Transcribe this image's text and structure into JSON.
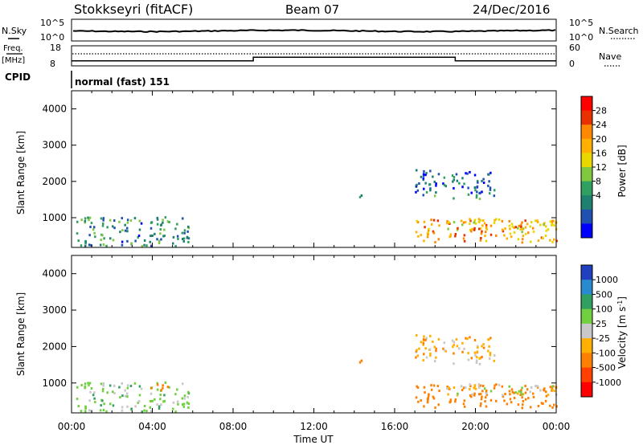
{
  "header": {
    "station": "Stokkseyri (fitACF)",
    "beam": "Beam 07",
    "date": "24/Dec/2016"
  },
  "noise_panel": {
    "left_label": "N.Sky",
    "right_label": "N.Search",
    "ticks_left": [
      "10^5",
      "10^0"
    ],
    "ticks_right": [
      "10^5",
      "10^0"
    ]
  },
  "freq_panel": {
    "left_label_top": "Freq.",
    "left_label_bottom": "[MHz]",
    "right_label": "Nave",
    "ticks_left": [
      "18",
      "8"
    ],
    "ticks_right": [
      "60",
      "0"
    ]
  },
  "cpid": {
    "label": "CPID",
    "text": "normal (fast) 151"
  },
  "power_panel": {
    "ylabel": "Slant Range [km]",
    "yticks": [
      "4000",
      "3000",
      "2000",
      "1000"
    ],
    "colorbar": {
      "label": "Power [dB]",
      "ticks": [
        "28",
        "24",
        "20",
        "16",
        "12",
        "8",
        "4"
      ],
      "colors": [
        "#ff0000",
        "#e83000",
        "#ff8800",
        "#ffb000",
        "#e8d800",
        "#80c840",
        "#30a060",
        "#208070",
        "#2050b0",
        "#0000ff"
      ]
    }
  },
  "velocity_panel": {
    "ylabel": "Slant Range [km]",
    "yticks": [
      "4000",
      "3000",
      "2000",
      "1000"
    ],
    "colorbar": {
      "label": "Velocity",
      "unit": "[m s",
      "unit_sup": "-1",
      "unit_end": "]",
      "ticks": [
        "1000",
        "500",
        "100",
        "25",
        "-25",
        "-100",
        "-500",
        "-1000"
      ],
      "colors": [
        "#2040c0",
        "#2a8ad0",
        "#30a060",
        "#70d040",
        "#c8c8c8",
        "#ffb000",
        "#ff8000",
        "#ff4000",
        "#ff0000"
      ]
    }
  },
  "xaxis": {
    "label": "Time UT",
    "ticks": [
      "00:00",
      "04:00",
      "08:00",
      "12:00",
      "16:00",
      "20:00",
      "00:00"
    ]
  },
  "chart_data": {
    "type": "heatmap",
    "title": "Stokkseyri (fitACF) Beam 07 24/Dec/2016",
    "x_range_hours": [
      0,
      24
    ],
    "y_range_km": [
      180,
      4500
    ],
    "xlabel": "Time UT",
    "ylabel": "Slant Range [km]",
    "freq_mhz_steps": [
      {
        "from_h": 0,
        "to_h": 9,
        "freq": 10.5
      },
      {
        "from_h": 9,
        "to_h": 19,
        "freq": 12.3
      },
      {
        "from_h": 19,
        "to_h": 24,
        "freq": 10.5
      }
    ],
    "echo_regions": [
      {
        "t0": 0.2,
        "t1": 5.8,
        "r0": 200,
        "r1": 1000,
        "power": 10,
        "velocity": 50
      },
      {
        "t0": 3.5,
        "t1": 4.8,
        "r0": 750,
        "r1": 950,
        "power": 14,
        "velocity": -150
      },
      {
        "t0": 17.0,
        "t1": 24.0,
        "r0": 300,
        "r1": 950,
        "power": 22,
        "velocity": -300
      },
      {
        "t0": 17.0,
        "t1": 21.0,
        "r0": 1500,
        "r1": 2300,
        "power": 8,
        "velocity": -50
      },
      {
        "t0": 14.2,
        "t1": 14.5,
        "r0": 1400,
        "r1": 1700,
        "power": 10,
        "velocity": -200
      },
      {
        "t0": 18.5,
        "t1": 24.0,
        "r0": 650,
        "r1": 950,
        "power": 20,
        "velocity": 0
      }
    ]
  }
}
